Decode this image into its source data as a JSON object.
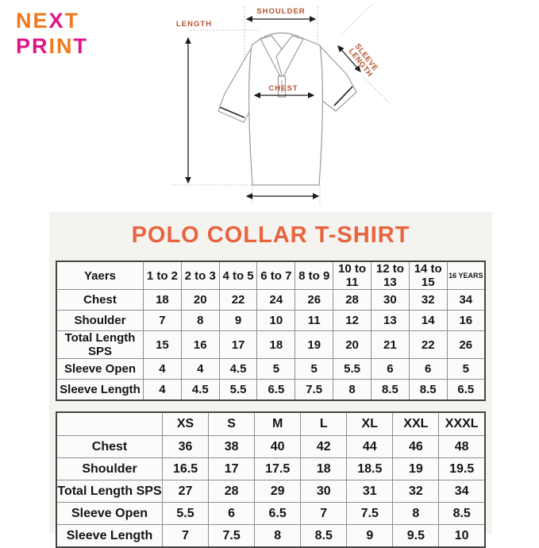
{
  "logo": {
    "line1": [
      {
        "ch": "N",
        "color": "#f0791d"
      },
      {
        "ch": "E",
        "color": "#f0791d"
      },
      {
        "ch": "X",
        "color": "#e01387"
      },
      {
        "ch": "T",
        "color": "#f0791d"
      }
    ],
    "line2": [
      {
        "ch": "P",
        "color": "#e01387"
      },
      {
        "ch": "R",
        "color": "#e01387"
      },
      {
        "ch": "I",
        "color": "#f0791d"
      },
      {
        "ch": "N",
        "color": "#f0791d"
      },
      {
        "ch": "T",
        "color": "#e01387"
      }
    ]
  },
  "diagram": {
    "labels": {
      "shoulder": "SHOULDER",
      "length": "LENGTH",
      "sleeve_line1": "SLEEVE",
      "sleeve_line2": "LENGTH",
      "chest": "CHEST"
    },
    "label_color": "#b5532f"
  },
  "title": "POLO COLLAR T-SHIRT",
  "title_color": "#e8643e",
  "kids_table": {
    "headers": [
      "Yaers",
      "1 to 2",
      "2 to 3",
      "4 to 5",
      "6 to 7",
      "8 to 9",
      "10 to 11",
      "12 to 13",
      "14 to 15",
      "16 YEARS"
    ],
    "rows": [
      {
        "label": "Chest",
        "values": [
          "18",
          "20",
          "22",
          "24",
          "26",
          "28",
          "30",
          "32",
          "34"
        ]
      },
      {
        "label": "Shoulder",
        "values": [
          "7",
          "8",
          "9",
          "10",
          "11",
          "12",
          "13",
          "14",
          "16"
        ]
      },
      {
        "label": "Total Length SPS",
        "values": [
          "15",
          "16",
          "17",
          "18",
          "19",
          "20",
          "21",
          "22",
          "26"
        ]
      },
      {
        "label": "Sleeve Open",
        "values": [
          "4",
          "4",
          "4.5",
          "5",
          "5",
          "5.5",
          "6",
          "6",
          "5"
        ]
      },
      {
        "label": "Sleeve Length",
        "values": [
          "4",
          "4.5",
          "5.5",
          "6.5",
          "7.5",
          "8",
          "8.5",
          "8.5",
          "6.5"
        ]
      }
    ]
  },
  "adult_table": {
    "headers": [
      "",
      "XS",
      "S",
      "M",
      "L",
      "XL",
      "XXL",
      "XXXL"
    ],
    "rows": [
      {
        "label": "Chest",
        "values": [
          "36",
          "38",
          "40",
          "42",
          "44",
          "46",
          "48"
        ]
      },
      {
        "label": "Shoulder",
        "values": [
          "16.5",
          "17",
          "17.5",
          "18",
          "18.5",
          "19",
          "19.5"
        ]
      },
      {
        "label": "Total Length SPS",
        "values": [
          "27",
          "28",
          "29",
          "30",
          "31",
          "32",
          "34"
        ]
      },
      {
        "label": "Sleeve Open",
        "values": [
          "5.5",
          "6",
          "6.5",
          "7",
          "7.5",
          "8",
          "8.5"
        ]
      },
      {
        "label": "Sleeve Length",
        "values": [
          "7",
          "7.5",
          "8",
          "8.5",
          "9",
          "9.5",
          "10"
        ]
      }
    ]
  }
}
